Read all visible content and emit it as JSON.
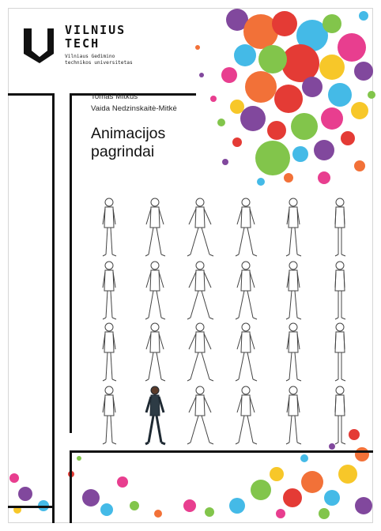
{
  "logo": {
    "brand_line1": "VILNIUS",
    "brand_line2": "TECH",
    "sub_line1": "Vilniaus Gedimino",
    "sub_line2": "technikos universitetas"
  },
  "authors": [
    "Tomas Mitkus",
    "Vaida Nedzinskaitė-Mitkė"
  ],
  "title_line1": "Animacijos",
  "title_line2": "pagrindai",
  "colors": {
    "frame": "#111111",
    "splash_orange": "#f26a2e",
    "splash_green": "#7cc242",
    "splash_purple": "#7b3f98",
    "splash_pink": "#e7348a",
    "splash_cyan": "#3ab7e6",
    "splash_yellow": "#f7c51e",
    "splash_red": "#e3312b"
  },
  "illustration": {
    "rows": 4,
    "columns": 6,
    "highlighted_figure": "row 4, column 2 (colored walking man)"
  }
}
